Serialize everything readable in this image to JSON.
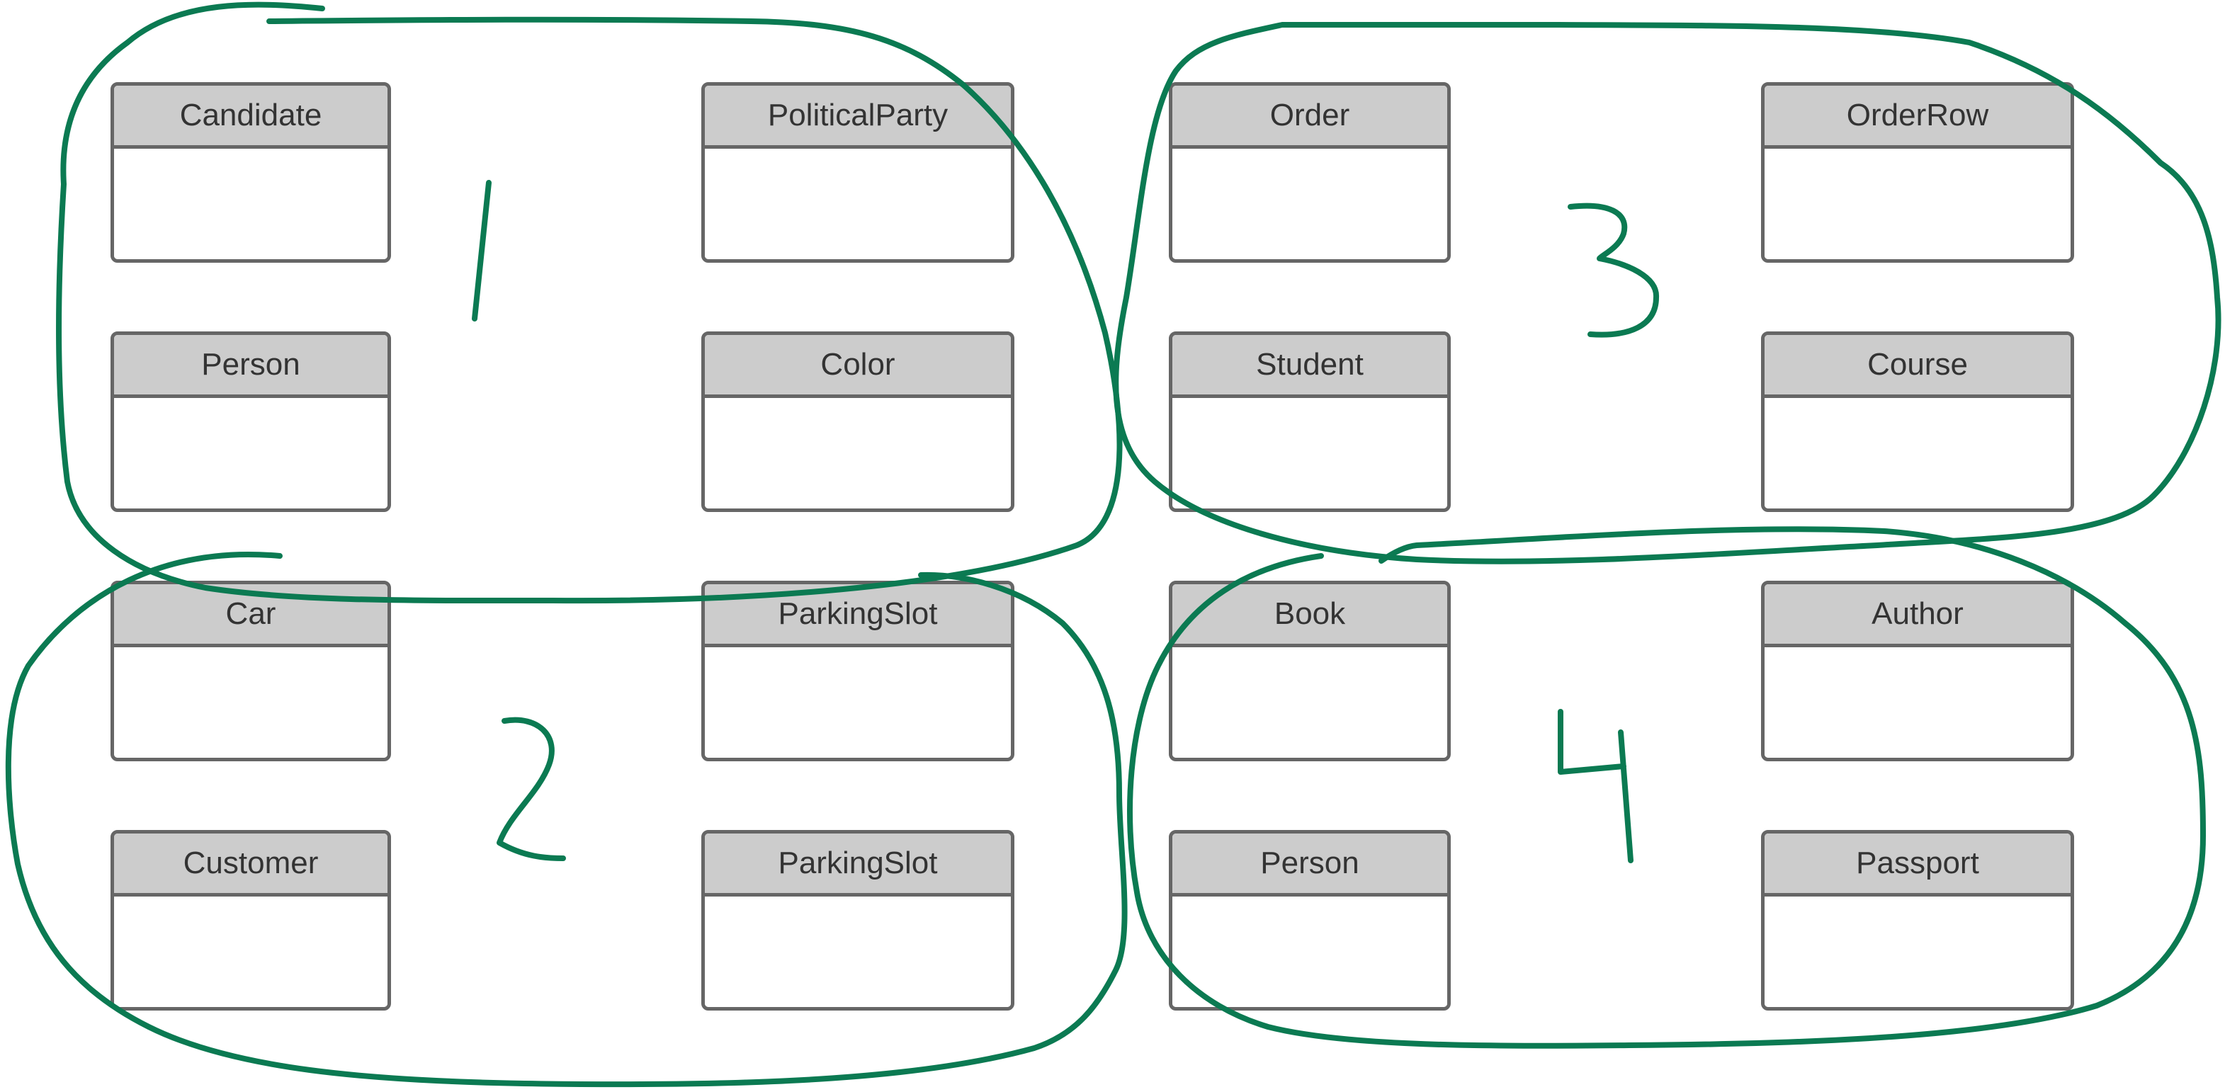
{
  "colors": {
    "ink": "#0b7a52",
    "header_fill": "#cccccc",
    "border": "#666666"
  },
  "groups": [
    {
      "number": "1",
      "classes": [
        "Candidate",
        "PoliticalParty",
        "Person",
        "Color"
      ]
    },
    {
      "number": "2",
      "classes": [
        "Car",
        "ParkingSlot",
        "Customer",
        "ParkingSlot"
      ]
    },
    {
      "number": "3",
      "classes": [
        "Order",
        "OrderRow",
        "Student",
        "Course"
      ]
    },
    {
      "number": "4",
      "classes": [
        "Book",
        "Author",
        "Person",
        "Passport"
      ]
    }
  ]
}
